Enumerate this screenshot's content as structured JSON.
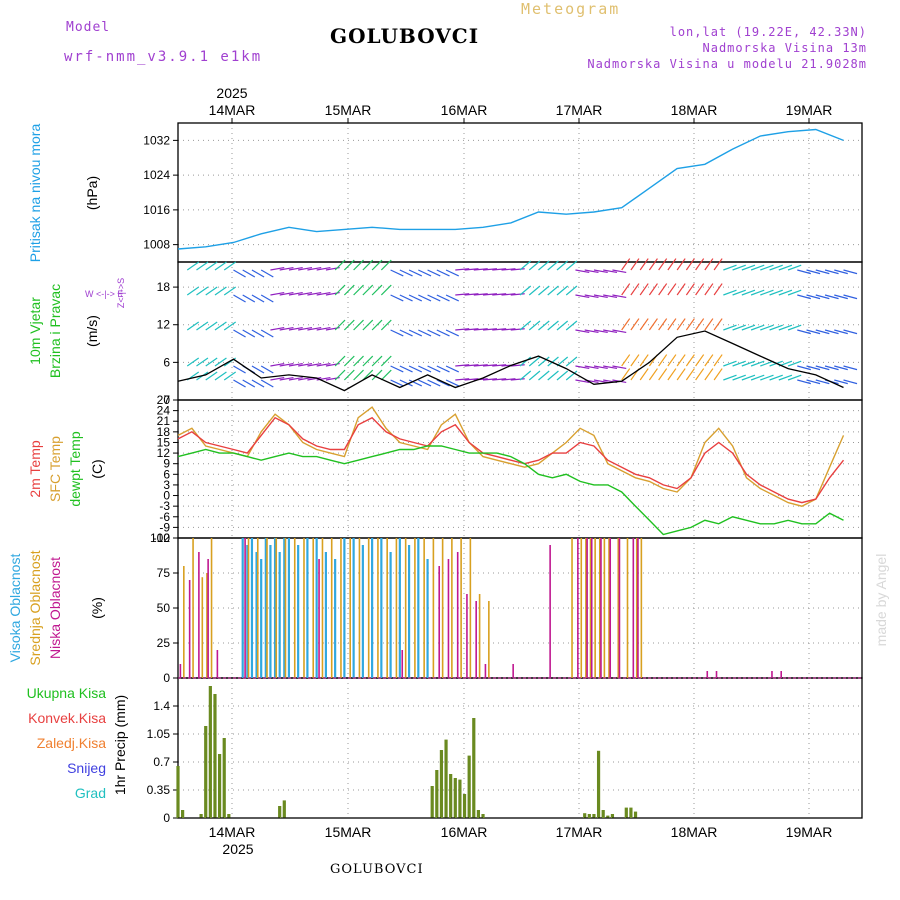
{
  "header": {
    "model_label": "Model",
    "model_name": "wrf-nmm_v3.9.1 e1km",
    "title": "GOLUBOVCI",
    "subtitle": "Meteogram",
    "coords": "lon,lat (19.22E, 42.33N)",
    "elevation": "Nadmorska Visina 13m",
    "model_elevation": "Nadmorska Visina u modelu 21.9028m",
    "watermark": "made by Angel",
    "bottom_title": "GOLUBOVCI"
  },
  "colors": {
    "pressure": "#1ea0e6",
    "temp2m": "#e84040",
    "sfc_temp": "#d8a030",
    "dewpt": "#20c020",
    "high_cloud": "#30a8e0",
    "mid_cloud": "#d8a020",
    "low_cloud": "#c01890",
    "precip": "#6a8a20",
    "model_text": "#a040d0",
    "subtitle": "#e0c070"
  },
  "time_axis": {
    "year": "2025",
    "days": [
      "14MAR",
      "15MAR",
      "16MAR",
      "17MAR",
      "18MAR",
      "19MAR"
    ]
  },
  "panels": {
    "pressure": {
      "labels": [
        "Pritisak na nivou mora"
      ],
      "unit": "(hPa)"
    },
    "wind": {
      "labels": [
        "10m Vjetar",
        "Brzina i Pravac"
      ],
      "unit": "(m/s)",
      "compass": "W  <-|->  E",
      "compass_ns": "Z<-|->S"
    },
    "temp": {
      "labels": [
        "2m Temp",
        "SFC Temp",
        "dewpt Temp"
      ],
      "unit": "(C)"
    },
    "cloud": {
      "labels": [
        "Visoka Oblacnost",
        "Srednja Oblacnost",
        "Niska Oblacnost"
      ],
      "unit": "(%)"
    },
    "precip": {
      "labels": [
        "Ukupna Kisa",
        "Konvek.Kisa",
        "Zaledj.Kisa",
        "Snijeg",
        "Grad"
      ],
      "unit": "1hr Precip (mm)"
    }
  },
  "chart_data": [
    {
      "type": "line",
      "panel": "pressure",
      "x_unit": "hours from 2025-03-13 12:00",
      "ylim": [
        1004,
        1036
      ],
      "yticks": [
        1008,
        1016,
        1024,
        1032
      ],
      "series": [
        {
          "x": [
            0,
            6,
            12,
            18,
            24,
            30,
            36,
            42,
            48,
            54,
            60,
            66,
            72,
            78,
            84,
            90,
            96,
            102,
            108,
            114,
            120,
            126,
            132,
            138,
            144
          ],
          "values": [
            1007,
            1007.5,
            1008.5,
            1010.5,
            1012,
            1011,
            1011.5,
            1012,
            1011.5,
            1011.5,
            1011.5,
            1012,
            1013,
            1015.5,
            1015,
            1015.5,
            1016.5,
            1021,
            1025.5,
            1026.5,
            1030,
            1033,
            1034,
            1034.5,
            1032
          ]
        }
      ]
    },
    {
      "type": "line",
      "panel": "wind",
      "x_unit": "hours from 2025-03-13 12:00",
      "ylim": [
        0,
        22
      ],
      "yticks": [
        0,
        6,
        12,
        18
      ],
      "series": [
        {
          "x": [
            0,
            6,
            12,
            18,
            24,
            30,
            36,
            42,
            48,
            54,
            60,
            66,
            72,
            78,
            84,
            90,
            96,
            102,
            108,
            114,
            120,
            126,
            132,
            138,
            144
          ],
          "values": [
            3,
            4,
            6.5,
            3.5,
            4,
            3.5,
            1.5,
            4,
            2,
            4,
            2,
            3.5,
            5.5,
            7,
            5,
            2.5,
            3,
            6,
            10,
            11,
            9,
            7,
            5,
            4,
            2
          ]
        }
      ]
    },
    {
      "type": "line",
      "panel": "temp",
      "x_unit": "hours from 2025-03-13 12:00",
      "ylim": [
        -12,
        27
      ],
      "yticks": [
        -12,
        -9,
        -6,
        -3,
        0,
        3,
        6,
        9,
        12,
        15,
        18,
        21,
        24,
        27
      ],
      "series": [
        {
          "x": [
            0,
            3,
            6,
            9,
            12,
            15,
            18,
            21,
            24,
            27,
            30,
            33,
            36,
            39,
            42,
            45,
            48,
            51,
            54,
            57,
            60,
            63,
            66,
            69,
            72,
            75,
            78,
            81,
            84,
            87,
            90,
            93,
            96,
            99,
            102,
            105,
            108,
            111,
            114,
            117,
            120,
            123,
            126,
            129,
            132,
            135,
            138,
            141,
            144
          ],
          "values": [
            16,
            18,
            15,
            14,
            13,
            12,
            17,
            22,
            20,
            16,
            14,
            13,
            13,
            20,
            22,
            18,
            16,
            15,
            14,
            18,
            20,
            15,
            12,
            11,
            10,
            9,
            10,
            12,
            12,
            15,
            14,
            10,
            8,
            6,
            5,
            3,
            2,
            5,
            12,
            15,
            12,
            6,
            3,
            1,
            -1,
            -2,
            -1,
            5,
            10
          ]
        },
        {
          "x": [
            0,
            3,
            6,
            9,
            12,
            15,
            18,
            21,
            24,
            27,
            30,
            33,
            36,
            39,
            42,
            45,
            48,
            51,
            54,
            57,
            60,
            63,
            66,
            69,
            72,
            75,
            78,
            81,
            84,
            87,
            90,
            93,
            96,
            99,
            102,
            105,
            108,
            111,
            114,
            117,
            120,
            123,
            126,
            129,
            132,
            135,
            138,
            141,
            144
          ],
          "values": [
            17,
            19,
            14,
            13,
            12,
            11,
            18,
            23,
            20,
            15,
            13,
            12,
            11,
            22,
            25,
            19,
            15,
            14,
            13,
            20,
            23,
            15,
            11,
            10,
            9,
            8,
            9,
            12,
            15,
            19,
            17,
            9,
            7,
            5,
            4,
            2,
            1,
            5,
            15,
            19,
            14,
            5,
            2,
            0,
            -2,
            -3,
            -1,
            8,
            17
          ]
        },
        {
          "x": [
            0,
            3,
            6,
            9,
            12,
            15,
            18,
            21,
            24,
            27,
            30,
            33,
            36,
            39,
            42,
            45,
            48,
            51,
            54,
            57,
            60,
            63,
            66,
            69,
            72,
            75,
            78,
            81,
            84,
            87,
            90,
            93,
            96,
            99,
            102,
            105,
            108,
            111,
            114,
            117,
            120,
            123,
            126,
            129,
            132,
            135,
            138,
            141,
            144
          ],
          "values": [
            11,
            12,
            13,
            12,
            12,
            11,
            10,
            11,
            12,
            11,
            11,
            10,
            9,
            10,
            11,
            12,
            13,
            13,
            14,
            14,
            13,
            12,
            12,
            12,
            11,
            9,
            6,
            5,
            6,
            4,
            3,
            3,
            1,
            -3,
            -7,
            -11,
            -10,
            -9,
            -7,
            -8,
            -6,
            -7,
            -8,
            -8,
            -7,
            -8,
            -8,
            -5,
            -7
          ]
        }
      ]
    },
    {
      "type": "bar",
      "panel": "cloud",
      "x_unit": "hours from 2025-03-13 12:00",
      "ylim": [
        0,
        100
      ],
      "yticks": [
        0,
        25,
        50,
        75,
        100
      ],
      "series": [
        {
          "x": [
            14,
            15,
            16,
            17,
            18,
            19,
            20,
            21,
            22,
            23,
            24,
            26,
            28,
            30,
            32,
            34,
            36,
            38,
            40,
            42,
            44,
            46,
            48,
            50,
            52,
            54
          ],
          "values": [
            100,
            95,
            100,
            90,
            85,
            100,
            95,
            100,
            90,
            100,
            100,
            95,
            100,
            100,
            90,
            85,
            100,
            100,
            95,
            100,
            100,
            90,
            100,
            95,
            100,
            85
          ]
        },
        {
          "x": [
            1,
            3,
            5,
            6,
            7,
            15,
            17,
            19,
            21,
            23,
            25,
            27,
            29,
            31,
            33,
            35,
            37,
            39,
            41,
            43,
            45,
            47,
            49,
            51,
            53,
            55,
            57,
            59,
            61,
            63,
            65,
            67,
            85,
            87,
            88,
            89,
            90,
            91,
            92,
            93,
            95,
            97,
            99,
            100
          ],
          "values": [
            80,
            100,
            72,
            75,
            100,
            100,
            100,
            100,
            100,
            100,
            100,
            100,
            100,
            100,
            100,
            100,
            100,
            100,
            100,
            100,
            100,
            100,
            100,
            100,
            100,
            100,
            100,
            100,
            100,
            100,
            60,
            55,
            100,
            100,
            100,
            100,
            100,
            100,
            100,
            100,
            100,
            100,
            100,
            100
          ]
        },
        {
          "x": [
            0,
            2,
            4,
            6,
            8,
            14,
            30,
            48,
            56,
            58,
            60,
            62,
            64,
            66,
            72,
            80,
            86,
            88,
            89,
            91,
            93,
            95,
            98,
            99,
            114,
            116,
            128,
            130
          ],
          "values": [
            10,
            70,
            90,
            85,
            20,
            100,
            85,
            20,
            80,
            85,
            90,
            60,
            55,
            10,
            10,
            95,
            100,
            100,
            100,
            100,
            100,
            100,
            100,
            100,
            5,
            5,
            5,
            5
          ]
        }
      ]
    },
    {
      "type": "bar",
      "panel": "precip",
      "x_unit": "hours from 2025-03-13 12:00",
      "ylim": [
        0,
        1.75
      ],
      "yticks": [
        0,
        0.35,
        0.7,
        1.05,
        1.4
      ],
      "series": [
        {
          "x": [
            0,
            1,
            5,
            6,
            7,
            8,
            9,
            10,
            11,
            22,
            23,
            55,
            56,
            57,
            58,
            59,
            60,
            61,
            62,
            63,
            64,
            65,
            66,
            88,
            89,
            90,
            91,
            92,
            93,
            94,
            97,
            98,
            99
          ],
          "values": [
            0.65,
            0.1,
            0.05,
            1.15,
            1.65,
            1.55,
            0.8,
            1.0,
            0.05,
            0.15,
            0.22,
            0.4,
            0.6,
            0.85,
            0.98,
            0.55,
            0.5,
            0.48,
            0.3,
            0.78,
            1.25,
            0.1,
            0.05,
            0.06,
            0.05,
            0.05,
            0.84,
            0.1,
            0.03,
            0.05,
            0.13,
            0.13,
            0.08
          ]
        }
      ]
    }
  ]
}
